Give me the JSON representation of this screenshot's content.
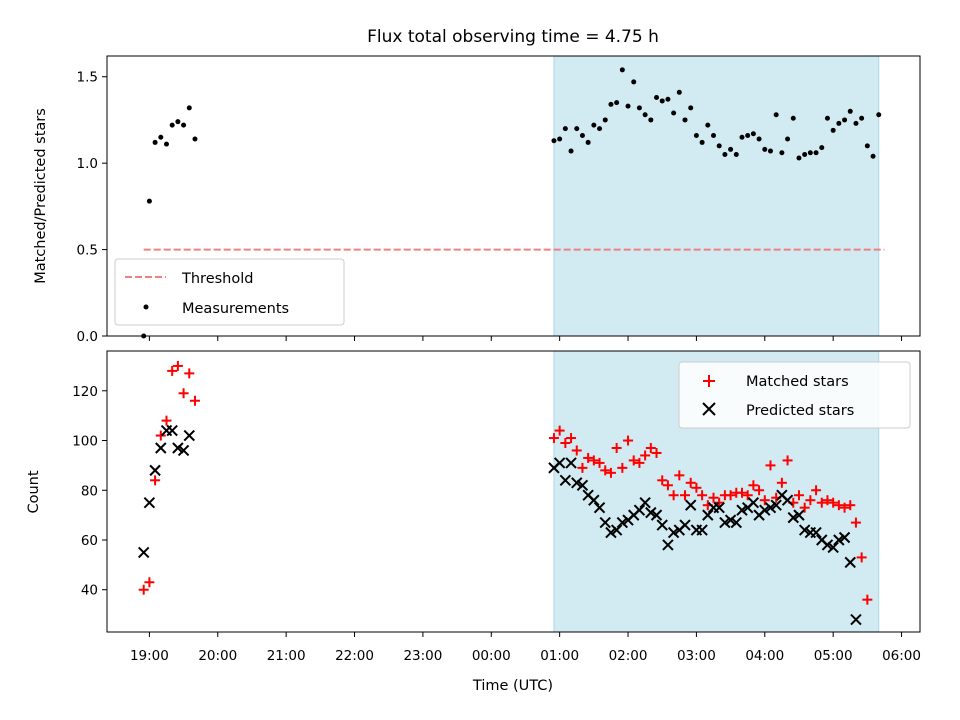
{
  "title": "Flux total observing time = 4.75 h",
  "colors": {
    "shade": "#add8e6",
    "threshold": "#f08080",
    "measurements": "#000000",
    "matched": "#ff0000",
    "predicted": "#000000"
  },
  "chart_data": [
    {
      "type": "scatter",
      "panel": "top",
      "ylabel": "Matched/Predicted stars",
      "ylim": [
        0,
        1.62
      ],
      "yticks": [
        0.0,
        0.5,
        1.0,
        1.5
      ],
      "ytick_labels": [
        "0.0",
        "0.5",
        "1.0",
        "1.5"
      ],
      "x_unit": "hours after 19:00 UTC",
      "shaded_span": [
        "00:55",
        "05:40"
      ],
      "legend": {
        "position": "lower-left",
        "entries": [
          "Threshold",
          "Measurements"
        ]
      },
      "threshold": {
        "name": "Threshold",
        "y": 0.5,
        "x_range": [
          "18:55",
          "05:45"
        ],
        "style": "dashed"
      },
      "series": [
        {
          "name": "Measurements",
          "marker": "dot",
          "points": [
            [
              "18:55",
              0.0
            ],
            [
              "19:00",
              0.78
            ],
            [
              "19:05",
              1.12
            ],
            [
              "19:10",
              1.15
            ],
            [
              "19:15",
              1.11
            ],
            [
              "19:20",
              1.22
            ],
            [
              "19:25",
              1.24
            ],
            [
              "19:30",
              1.22
            ],
            [
              "19:35",
              1.32
            ],
            [
              "19:40",
              1.14
            ],
            [
              "00:55",
              1.13
            ],
            [
              "01:00",
              1.14
            ],
            [
              "01:05",
              1.2
            ],
            [
              "01:10",
              1.07
            ],
            [
              "01:15",
              1.2
            ],
            [
              "01:20",
              1.16
            ],
            [
              "01:25",
              1.12
            ],
            [
              "01:30",
              1.22
            ],
            [
              "01:35",
              1.2
            ],
            [
              "01:40",
              1.25
            ],
            [
              "01:45",
              1.34
            ],
            [
              "01:50",
              1.35
            ],
            [
              "01:55",
              1.54
            ],
            [
              "02:00",
              1.33
            ],
            [
              "02:05",
              1.47
            ],
            [
              "02:10",
              1.32
            ],
            [
              "02:15",
              1.28
            ],
            [
              "02:20",
              1.25
            ],
            [
              "02:25",
              1.38
            ],
            [
              "02:30",
              1.36
            ],
            [
              "02:35",
              1.37
            ],
            [
              "02:40",
              1.29
            ],
            [
              "02:45",
              1.41
            ],
            [
              "02:50",
              1.25
            ],
            [
              "02:55",
              1.32
            ],
            [
              "03:00",
              1.16
            ],
            [
              "03:05",
              1.12
            ],
            [
              "03:10",
              1.22
            ],
            [
              "03:15",
              1.16
            ],
            [
              "03:20",
              1.1
            ],
            [
              "03:25",
              1.05
            ],
            [
              "03:30",
              1.08
            ],
            [
              "03:35",
              1.05
            ],
            [
              "03:40",
              1.15
            ],
            [
              "03:45",
              1.16
            ],
            [
              "03:50",
              1.17
            ],
            [
              "03:55",
              1.14
            ],
            [
              "04:00",
              1.08
            ],
            [
              "04:05",
              1.07
            ],
            [
              "04:10",
              1.28
            ],
            [
              "04:15",
              1.06
            ],
            [
              "04:20",
              1.14
            ],
            [
              "04:25",
              1.26
            ],
            [
              "04:30",
              1.03
            ],
            [
              "04:35",
              1.05
            ],
            [
              "04:40",
              1.06
            ],
            [
              "04:45",
              1.06
            ],
            [
              "04:50",
              1.09
            ],
            [
              "04:55",
              1.26
            ],
            [
              "05:00",
              1.19
            ],
            [
              "05:05",
              1.23
            ],
            [
              "05:10",
              1.25
            ],
            [
              "05:15",
              1.3
            ],
            [
              "05:20",
              1.23
            ],
            [
              "05:25",
              1.26
            ],
            [
              "05:30",
              1.1
            ],
            [
              "05:35",
              1.04
            ],
            [
              "05:40",
              1.28
            ]
          ]
        }
      ]
    },
    {
      "type": "scatter",
      "panel": "bottom",
      "xlabel": "Time (UTC)",
      "ylabel": "Count",
      "ylim": [
        23,
        136
      ],
      "yticks": [
        40,
        60,
        80,
        100,
        120
      ],
      "ytick_labels": [
        "40",
        "60",
        "80",
        "100",
        "120"
      ],
      "x_unit": "hours after 19:00 UTC",
      "xlim": [
        -0.62,
        11.27
      ],
      "xticks": [
        0,
        1,
        2,
        3,
        4,
        5,
        6,
        7,
        8,
        9,
        10,
        11
      ],
      "xtick_labels": [
        "19:00",
        "20:00",
        "21:00",
        "22:00",
        "23:00",
        "00:00",
        "01:00",
        "02:00",
        "03:00",
        "04:00",
        "05:00",
        "06:00"
      ],
      "shaded_span": [
        "00:55",
        "05:40"
      ],
      "legend": {
        "position": "upper-right",
        "entries": [
          "Matched stars",
          "Predicted stars"
        ]
      },
      "series": [
        {
          "name": "Matched stars",
          "marker": "plus",
          "points": [
            [
              "18:55",
              40
            ],
            [
              "19:00",
              43
            ],
            [
              "19:05",
              84
            ],
            [
              "19:10",
              102
            ],
            [
              "19:15",
              108
            ],
            [
              "19:20",
              128
            ],
            [
              "19:25",
              130
            ],
            [
              "19:30",
              119
            ],
            [
              "19:35",
              127
            ],
            [
              "19:40",
              116
            ],
            [
              "00:55",
              101
            ],
            [
              "01:00",
              104
            ],
            [
              "01:05",
              99
            ],
            [
              "01:10",
              101
            ],
            [
              "01:15",
              96
            ],
            [
              "01:20",
              89
            ],
            [
              "01:25",
              93
            ],
            [
              "01:30",
              92
            ],
            [
              "01:35",
              91
            ],
            [
              "01:40",
              88
            ],
            [
              "01:45",
              87
            ],
            [
              "01:50",
              97
            ],
            [
              "01:55",
              89
            ],
            [
              "02:00",
              100
            ],
            [
              "02:05",
              92
            ],
            [
              "02:10",
              91
            ],
            [
              "02:15",
              94
            ],
            [
              "02:20",
              97
            ],
            [
              "02:25",
              95
            ],
            [
              "02:30",
              84
            ],
            [
              "02:35",
              82
            ],
            [
              "02:40",
              78
            ],
            [
              "02:45",
              86
            ],
            [
              "02:50",
              78
            ],
            [
              "02:55",
              83
            ],
            [
              "03:00",
              81
            ],
            [
              "03:05",
              78
            ],
            [
              "03:10",
              74
            ],
            [
              "03:15",
              77
            ],
            [
              "03:20",
              75
            ],
            [
              "03:25",
              78
            ],
            [
              "03:30",
              78
            ],
            [
              "03:35",
              79
            ],
            [
              "03:40",
              79
            ],
            [
              "03:45",
              78
            ],
            [
              "03:50",
              82
            ],
            [
              "03:55",
              80
            ],
            [
              "04:00",
              76
            ],
            [
              "04:05",
              90
            ],
            [
              "04:10",
              77
            ],
            [
              "04:15",
              83
            ],
            [
              "04:20",
              92
            ],
            [
              "04:25",
              75
            ],
            [
              "04:30",
              78
            ],
            [
              "04:35",
              73
            ],
            [
              "04:40",
              76
            ],
            [
              "04:45",
              80
            ],
            [
              "04:50",
              75
            ],
            [
              "04:55",
              76
            ],
            [
              "05:00",
              75
            ],
            [
              "05:05",
              74
            ],
            [
              "05:10",
              73
            ],
            [
              "05:15",
              74
            ],
            [
              "05:20",
              67
            ],
            [
              "05:25",
              53
            ],
            [
              "05:30",
              36
            ]
          ]
        },
        {
          "name": "Predicted stars",
          "marker": "x",
          "points": [
            [
              "18:55",
              55
            ],
            [
              "19:00",
              75
            ],
            [
              "19:05",
              88
            ],
            [
              "19:10",
              97
            ],
            [
              "19:15",
              104
            ],
            [
              "19:20",
              104
            ],
            [
              "19:25",
              97
            ],
            [
              "19:30",
              96
            ],
            [
              "19:35",
              102
            ],
            [
              "00:55",
              89
            ],
            [
              "01:00",
              91
            ],
            [
              "01:05",
              84
            ],
            [
              "01:10",
              91
            ],
            [
              "01:15",
              83
            ],
            [
              "01:20",
              82
            ],
            [
              "01:25",
              78
            ],
            [
              "01:30",
              76
            ],
            [
              "01:35",
              73
            ],
            [
              "01:40",
              67
            ],
            [
              "01:45",
              63
            ],
            [
              "01:50",
              64
            ],
            [
              "01:55",
              67
            ],
            [
              "02:00",
              68
            ],
            [
              "02:05",
              70
            ],
            [
              "02:10",
              72
            ],
            [
              "02:15",
              75
            ],
            [
              "02:20",
              71
            ],
            [
              "02:25",
              70
            ],
            [
              "02:30",
              66
            ],
            [
              "02:35",
              58
            ],
            [
              "02:40",
              63
            ],
            [
              "02:45",
              64
            ],
            [
              "02:50",
              66
            ],
            [
              "02:55",
              74
            ],
            [
              "03:00",
              64
            ],
            [
              "03:05",
              64
            ],
            [
              "03:10",
              70
            ],
            [
              "03:15",
              73
            ],
            [
              "03:20",
              73
            ],
            [
              "03:25",
              67
            ],
            [
              "03:30",
              68
            ],
            [
              "03:35",
              67
            ],
            [
              "03:40",
              72
            ],
            [
              "03:45",
              73
            ],
            [
              "03:50",
              75
            ],
            [
              "03:55",
              70
            ],
            [
              "04:00",
              72
            ],
            [
              "04:05",
              73
            ],
            [
              "04:10",
              74
            ],
            [
              "04:15",
              78
            ],
            [
              "04:20",
              76
            ],
            [
              "04:25",
              69
            ],
            [
              "04:30",
              70
            ],
            [
              "04:35",
              64
            ],
            [
              "04:40",
              63
            ],
            [
              "04:45",
              63
            ],
            [
              "04:50",
              60
            ],
            [
              "04:55",
              58
            ],
            [
              "05:00",
              57
            ],
            [
              "05:05",
              60
            ],
            [
              "05:10",
              61
            ],
            [
              "05:15",
              51
            ],
            [
              "05:20",
              28
            ]
          ]
        }
      ]
    }
  ]
}
